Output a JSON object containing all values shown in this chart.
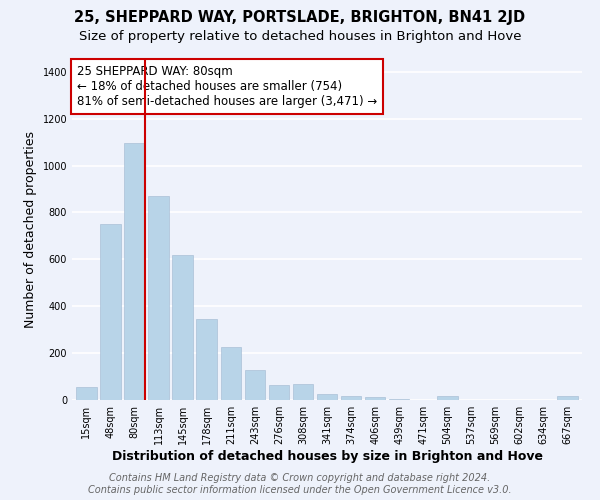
{
  "title": "25, SHEPPARD WAY, PORTSLADE, BRIGHTON, BN41 2JD",
  "subtitle": "Size of property relative to detached houses in Brighton and Hove",
  "xlabel": "Distribution of detached houses by size in Brighton and Hove",
  "ylabel": "Number of detached properties",
  "bar_labels": [
    "15sqm",
    "48sqm",
    "80sqm",
    "113sqm",
    "145sqm",
    "178sqm",
    "211sqm",
    "243sqm",
    "276sqm",
    "308sqm",
    "341sqm",
    "374sqm",
    "406sqm",
    "439sqm",
    "471sqm",
    "504sqm",
    "537sqm",
    "569sqm",
    "602sqm",
    "634sqm",
    "667sqm"
  ],
  "bar_values": [
    55,
    750,
    1095,
    870,
    620,
    345,
    225,
    130,
    65,
    70,
    25,
    18,
    12,
    5,
    0,
    15,
    0,
    0,
    0,
    0,
    15
  ],
  "bar_color": "#b8d4e8",
  "vline_color": "#cc0000",
  "vline_bar_index": 2,
  "annotation_text": "25 SHEPPARD WAY: 80sqm\n← 18% of detached houses are smaller (754)\n81% of semi-detached houses are larger (3,471) →",
  "annotation_box_edgecolor": "#cc0000",
  "annotation_box_facecolor": "#ffffff",
  "ylim": [
    0,
    1450
  ],
  "yticks": [
    0,
    200,
    400,
    600,
    800,
    1000,
    1200,
    1400
  ],
  "footer_line1": "Contains HM Land Registry data © Crown copyright and database right 2024.",
  "footer_line2": "Contains public sector information licensed under the Open Government Licence v3.0.",
  "background_color": "#eef2fb",
  "grid_color": "#ffffff",
  "title_fontsize": 10.5,
  "subtitle_fontsize": 9.5,
  "xlabel_fontsize": 9,
  "ylabel_fontsize": 9,
  "tick_fontsize": 7,
  "annotation_fontsize": 8.5,
  "footer_fontsize": 7
}
